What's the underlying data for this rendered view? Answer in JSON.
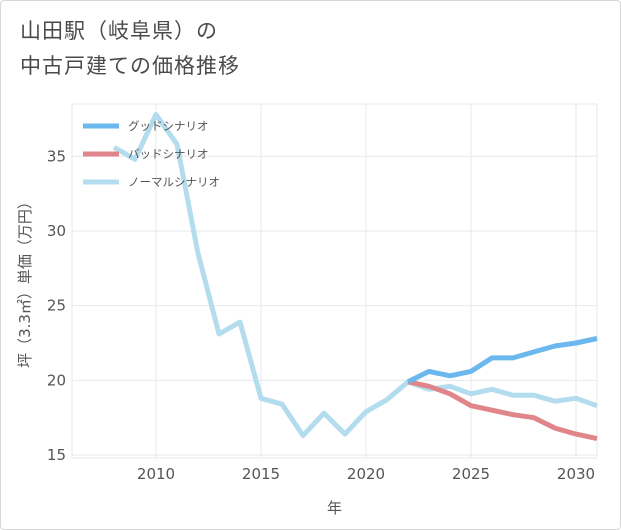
{
  "chart_data": {
    "type": "line",
    "title_line1": "山田駅（岐阜県）の",
    "title_line2": "中古戸建ての価格推移",
    "xlabel": "年",
    "ylabel": "坪（3.3㎡）単価（万円）",
    "xlim": [
      2006,
      2031
    ],
    "ylim": [
      14.8,
      38.5
    ],
    "xticks": [
      2010,
      2015,
      2020,
      2025,
      2030
    ],
    "yticks": [
      15,
      20,
      25,
      30,
      35
    ],
    "grid": true,
    "legend_position": "top-left",
    "series": [
      {
        "name": "グッドシナリオ",
        "color": "#6bb8ee",
        "x": [
          2022,
          2023,
          2024,
          2025,
          2026,
          2027,
          2028,
          2029,
          2030,
          2031
        ],
        "y": [
          19.9,
          20.6,
          20.3,
          20.6,
          21.5,
          21.5,
          21.9,
          22.3,
          22.5,
          22.8
        ]
      },
      {
        "name": "バッドシナリオ",
        "color": "#e0868a",
        "x": [
          2022,
          2023,
          2024,
          2025,
          2026,
          2027,
          2028,
          2029,
          2030,
          2031
        ],
        "y": [
          19.9,
          19.6,
          19.1,
          18.3,
          18.0,
          17.7,
          17.5,
          16.8,
          16.4,
          16.1
        ]
      },
      {
        "name": "ノーマルシナリオ",
        "color": "#b3ddef",
        "x": [
          2008,
          2009,
          2010,
          2011,
          2012,
          2013,
          2014,
          2015,
          2016,
          2017,
          2018,
          2019,
          2020,
          2021,
          2022,
          2023,
          2024,
          2025,
          2026,
          2027,
          2028,
          2029,
          2030,
          2031
        ],
        "y": [
          35.6,
          34.8,
          37.8,
          35.8,
          28.5,
          23.1,
          23.9,
          18.8,
          18.4,
          16.3,
          17.8,
          16.4,
          17.9,
          18.7,
          19.9,
          19.4,
          19.6,
          19.1,
          19.4,
          19.0,
          19.0,
          18.6,
          18.8,
          18.3
        ]
      }
    ]
  }
}
